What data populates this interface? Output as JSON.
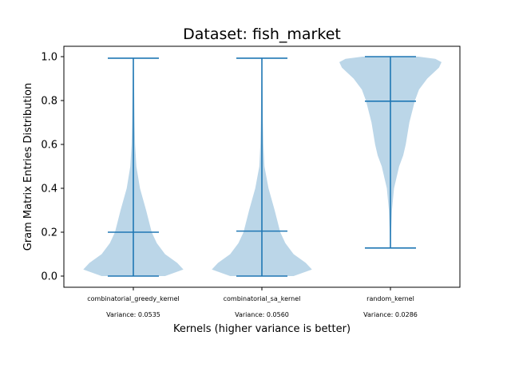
{
  "chart_data": {
    "type": "violin",
    "title": "Dataset: fish_market",
    "xlabel": "Kernels (higher variance is better)",
    "ylabel": "Gram Matrix Entries Distribution",
    "ylim": [
      -0.05,
      1.05
    ],
    "yticks": [
      "0.0",
      "0.2",
      "0.4",
      "0.6",
      "0.8",
      "1.0"
    ],
    "categories": [
      "combinatorial_greedy_kernel",
      "combinatorial_sa_kernel",
      "random_kernel"
    ],
    "variance_labels": [
      "Variance: 0.0535",
      "Variance: 0.0560",
      "Variance: 0.0286"
    ],
    "violins": [
      {
        "name": "combinatorial_greedy_kernel",
        "min": 0.0,
        "median": 0.2,
        "max": 0.993,
        "profile": [
          [
            0.0,
            0.62
          ],
          [
            0.03,
            0.98
          ],
          [
            0.06,
            0.86
          ],
          [
            0.1,
            0.62
          ],
          [
            0.15,
            0.46
          ],
          [
            0.2,
            0.36
          ],
          [
            0.3,
            0.25
          ],
          [
            0.4,
            0.13
          ],
          [
            0.5,
            0.06
          ],
          [
            0.6,
            0.035
          ],
          [
            0.7,
            0.025
          ],
          [
            0.8,
            0.018
          ],
          [
            0.9,
            0.012
          ],
          [
            0.993,
            0.006
          ]
        ]
      },
      {
        "name": "combinatorial_sa_kernel",
        "min": 0.0,
        "median": 0.205,
        "max": 0.993,
        "profile": [
          [
            0.0,
            0.62
          ],
          [
            0.03,
            0.98
          ],
          [
            0.06,
            0.86
          ],
          [
            0.1,
            0.62
          ],
          [
            0.15,
            0.46
          ],
          [
            0.2,
            0.36
          ],
          [
            0.3,
            0.25
          ],
          [
            0.4,
            0.13
          ],
          [
            0.5,
            0.05
          ],
          [
            0.6,
            0.03
          ],
          [
            0.7,
            0.02
          ],
          [
            0.8,
            0.015
          ],
          [
            0.9,
            0.01
          ],
          [
            0.993,
            0.006
          ]
        ]
      },
      {
        "name": "random_kernel",
        "min": 0.128,
        "median": 0.797,
        "max": 1.0,
        "profile": [
          [
            0.128,
            0.006
          ],
          [
            0.2,
            0.012
          ],
          [
            0.3,
            0.03
          ],
          [
            0.4,
            0.07
          ],
          [
            0.5,
            0.17
          ],
          [
            0.55,
            0.25
          ],
          [
            0.6,
            0.3
          ],
          [
            0.7,
            0.37
          ],
          [
            0.8,
            0.48
          ],
          [
            0.85,
            0.56
          ],
          [
            0.9,
            0.72
          ],
          [
            0.95,
            0.95
          ],
          [
            0.975,
            1.0
          ],
          [
            0.99,
            0.88
          ],
          [
            1.0,
            0.55
          ]
        ]
      }
    ],
    "colors": {
      "violin_fill": "#1f77b4",
      "violin_opacity": 0.3,
      "line": "#1f77b4"
    }
  }
}
